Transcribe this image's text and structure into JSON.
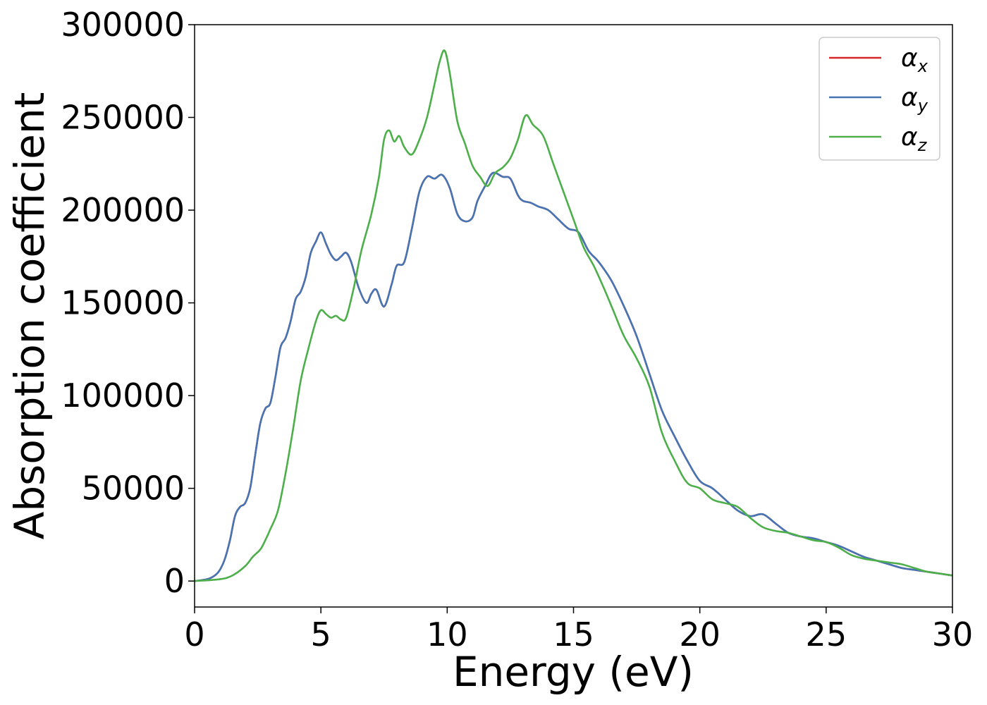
{
  "chart_data": {
    "type": "line",
    "title": "",
    "xlabel": "Energy (eV)",
    "ylabel": "Absorption coefficient",
    "xlim": [
      0,
      30
    ],
    "ylim": [
      -14000,
      300000
    ],
    "xticks": [
      0,
      5,
      10,
      15,
      20,
      25,
      30
    ],
    "yticks": [
      0,
      50000,
      100000,
      150000,
      200000,
      250000,
      300000
    ],
    "xtick_labels": [
      "0",
      "5",
      "10",
      "15",
      "20",
      "25",
      "30"
    ],
    "ytick_labels": [
      "0",
      "50000",
      "100000",
      "150000",
      "200000",
      "250000",
      "300000"
    ],
    "grid": false,
    "legend_position": "top-right",
    "series": [
      {
        "name": "αx",
        "symbol": "α",
        "sub": "x",
        "color": "#d62728",
        "x": [
          0,
          0.5,
          0.8,
          1.0,
          1.2,
          1.4,
          1.6,
          1.8,
          2.0,
          2.2,
          2.4,
          2.6,
          2.8,
          3.0,
          3.2,
          3.4,
          3.6,
          3.8,
          4.0,
          4.2,
          4.4,
          4.6,
          4.8,
          5.0,
          5.2,
          5.4,
          5.6,
          5.8,
          6.0,
          6.2,
          6.5,
          6.8,
          7.0,
          7.2,
          7.5,
          7.8,
          8.0,
          8.3,
          8.6,
          8.9,
          9.2,
          9.5,
          9.8,
          10.1,
          10.4,
          10.7,
          11.0,
          11.2,
          11.5,
          11.8,
          12.2,
          12.5,
          12.8,
          13.0,
          13.3,
          13.6,
          14.0,
          14.4,
          14.8,
          15.2,
          15.6,
          16.0,
          16.5,
          17.0,
          17.5,
          18.0,
          18.5,
          19.0,
          19.5,
          20.0,
          20.5,
          21.0,
          21.5,
          22.0,
          22.5,
          23.0,
          23.5,
          24.0,
          24.5,
          25.0,
          25.5,
          26.0,
          26.5,
          27.0,
          27.5,
          28.0,
          28.5,
          29.0,
          29.5,
          30.0
        ],
        "y": [
          0,
          1000,
          3000,
          6000,
          12000,
          22000,
          35000,
          40000,
          42000,
          50000,
          68000,
          85000,
          93000,
          96000,
          110000,
          126000,
          131000,
          140000,
          152000,
          156000,
          164000,
          177000,
          183000,
          188000,
          182000,
          176000,
          173000,
          175000,
          177000,
          172000,
          158000,
          150000,
          155000,
          157000,
          148000,
          160000,
          170000,
          172000,
          190000,
          210000,
          218000,
          217000,
          219000,
          212000,
          198000,
          194000,
          196000,
          205000,
          213000,
          220000,
          218000,
          217000,
          208000,
          205000,
          204000,
          202000,
          200000,
          195000,
          190000,
          188000,
          178000,
          172000,
          162000,
          148000,
          132000,
          112000,
          92000,
          78000,
          65000,
          54000,
          50000,
          44000,
          38000,
          35000,
          36000,
          31000,
          26000,
          24000,
          23000,
          21000,
          19000,
          16000,
          13000,
          11000,
          9000,
          7000,
          6000,
          5000,
          4000,
          3000
        ]
      },
      {
        "name": "αy",
        "symbol": "α",
        "sub": "y",
        "color": "#4575b4",
        "x": [
          0,
          0.5,
          0.8,
          1.0,
          1.2,
          1.4,
          1.6,
          1.8,
          2.0,
          2.2,
          2.4,
          2.6,
          2.8,
          3.0,
          3.2,
          3.4,
          3.6,
          3.8,
          4.0,
          4.2,
          4.4,
          4.6,
          4.8,
          5.0,
          5.2,
          5.4,
          5.6,
          5.8,
          6.0,
          6.2,
          6.5,
          6.8,
          7.0,
          7.2,
          7.5,
          7.8,
          8.0,
          8.3,
          8.6,
          8.9,
          9.2,
          9.5,
          9.8,
          10.1,
          10.4,
          10.7,
          11.0,
          11.2,
          11.5,
          11.8,
          12.2,
          12.5,
          12.8,
          13.0,
          13.3,
          13.6,
          14.0,
          14.4,
          14.8,
          15.2,
          15.6,
          16.0,
          16.5,
          17.0,
          17.5,
          18.0,
          18.5,
          19.0,
          19.5,
          20.0,
          20.5,
          21.0,
          21.5,
          22.0,
          22.5,
          23.0,
          23.5,
          24.0,
          24.5,
          25.0,
          25.5,
          26.0,
          26.5,
          27.0,
          27.5,
          28.0,
          28.5,
          29.0,
          29.5,
          30.0
        ],
        "y": [
          0,
          1000,
          3000,
          6000,
          12000,
          22000,
          35000,
          40000,
          42000,
          50000,
          68000,
          85000,
          93000,
          96000,
          110000,
          126000,
          131000,
          140000,
          152000,
          156000,
          164000,
          177000,
          183000,
          188000,
          182000,
          176000,
          173000,
          175000,
          177000,
          172000,
          158000,
          150000,
          155000,
          157000,
          148000,
          160000,
          170000,
          172000,
          190000,
          210000,
          218000,
          217000,
          219000,
          212000,
          198000,
          194000,
          196000,
          205000,
          213000,
          220000,
          218000,
          217000,
          208000,
          205000,
          204000,
          202000,
          200000,
          195000,
          190000,
          188000,
          178000,
          172000,
          162000,
          148000,
          132000,
          112000,
          92000,
          78000,
          65000,
          54000,
          50000,
          44000,
          38000,
          35000,
          36000,
          31000,
          26000,
          24000,
          23000,
          21000,
          19000,
          16000,
          13000,
          11000,
          9000,
          7000,
          6000,
          5000,
          4000,
          3000
        ]
      },
      {
        "name": "αz",
        "symbol": "α",
        "sub": "z",
        "color": "#4daf4a",
        "x": [
          0,
          1.0,
          1.5,
          2.0,
          2.3,
          2.6,
          2.8,
          3.0,
          3.3,
          3.6,
          3.9,
          4.2,
          4.5,
          4.8,
          5.0,
          5.2,
          5.4,
          5.6,
          5.8,
          6.0,
          6.3,
          6.6,
          7.0,
          7.3,
          7.5,
          7.7,
          7.9,
          8.1,
          8.3,
          8.6,
          8.9,
          9.2,
          9.5,
          9.7,
          9.9,
          10.1,
          10.4,
          10.7,
          11.0,
          11.3,
          11.6,
          11.9,
          12.2,
          12.5,
          12.8,
          13.1,
          13.4,
          13.8,
          14.2,
          14.6,
          15.0,
          15.4,
          15.8,
          16.2,
          16.6,
          17.0,
          17.5,
          18.0,
          18.5,
          19.0,
          19.5,
          20.0,
          20.5,
          21.0,
          21.5,
          22.0,
          22.5,
          23.0,
          23.5,
          24.0,
          24.5,
          25.0,
          25.5,
          26.0,
          26.5,
          27.0,
          27.5,
          28.0,
          28.5,
          29.0,
          29.5,
          30.0
        ],
        "y": [
          0,
          1000,
          3000,
          8000,
          13000,
          17000,
          22000,
          28000,
          38000,
          58000,
          82000,
          108000,
          125000,
          140000,
          146000,
          144000,
          142000,
          143000,
          141000,
          142000,
          158000,
          178000,
          198000,
          218000,
          238000,
          243000,
          237000,
          240000,
          234000,
          230000,
          238000,
          250000,
          268000,
          280000,
          286000,
          274000,
          248000,
          236000,
          224000,
          218000,
          213000,
          220000,
          223000,
          228000,
          238000,
          251000,
          246000,
          240000,
          225000,
          210000,
          195000,
          180000,
          170000,
          158000,
          145000,
          132000,
          120000,
          105000,
          80000,
          65000,
          53000,
          50000,
          44000,
          42000,
          40000,
          34000,
          29000,
          27000,
          26000,
          24000,
          22000,
          21000,
          18000,
          14000,
          12000,
          11000,
          10000,
          9000,
          7000,
          5000,
          4000,
          3000
        ]
      }
    ]
  }
}
